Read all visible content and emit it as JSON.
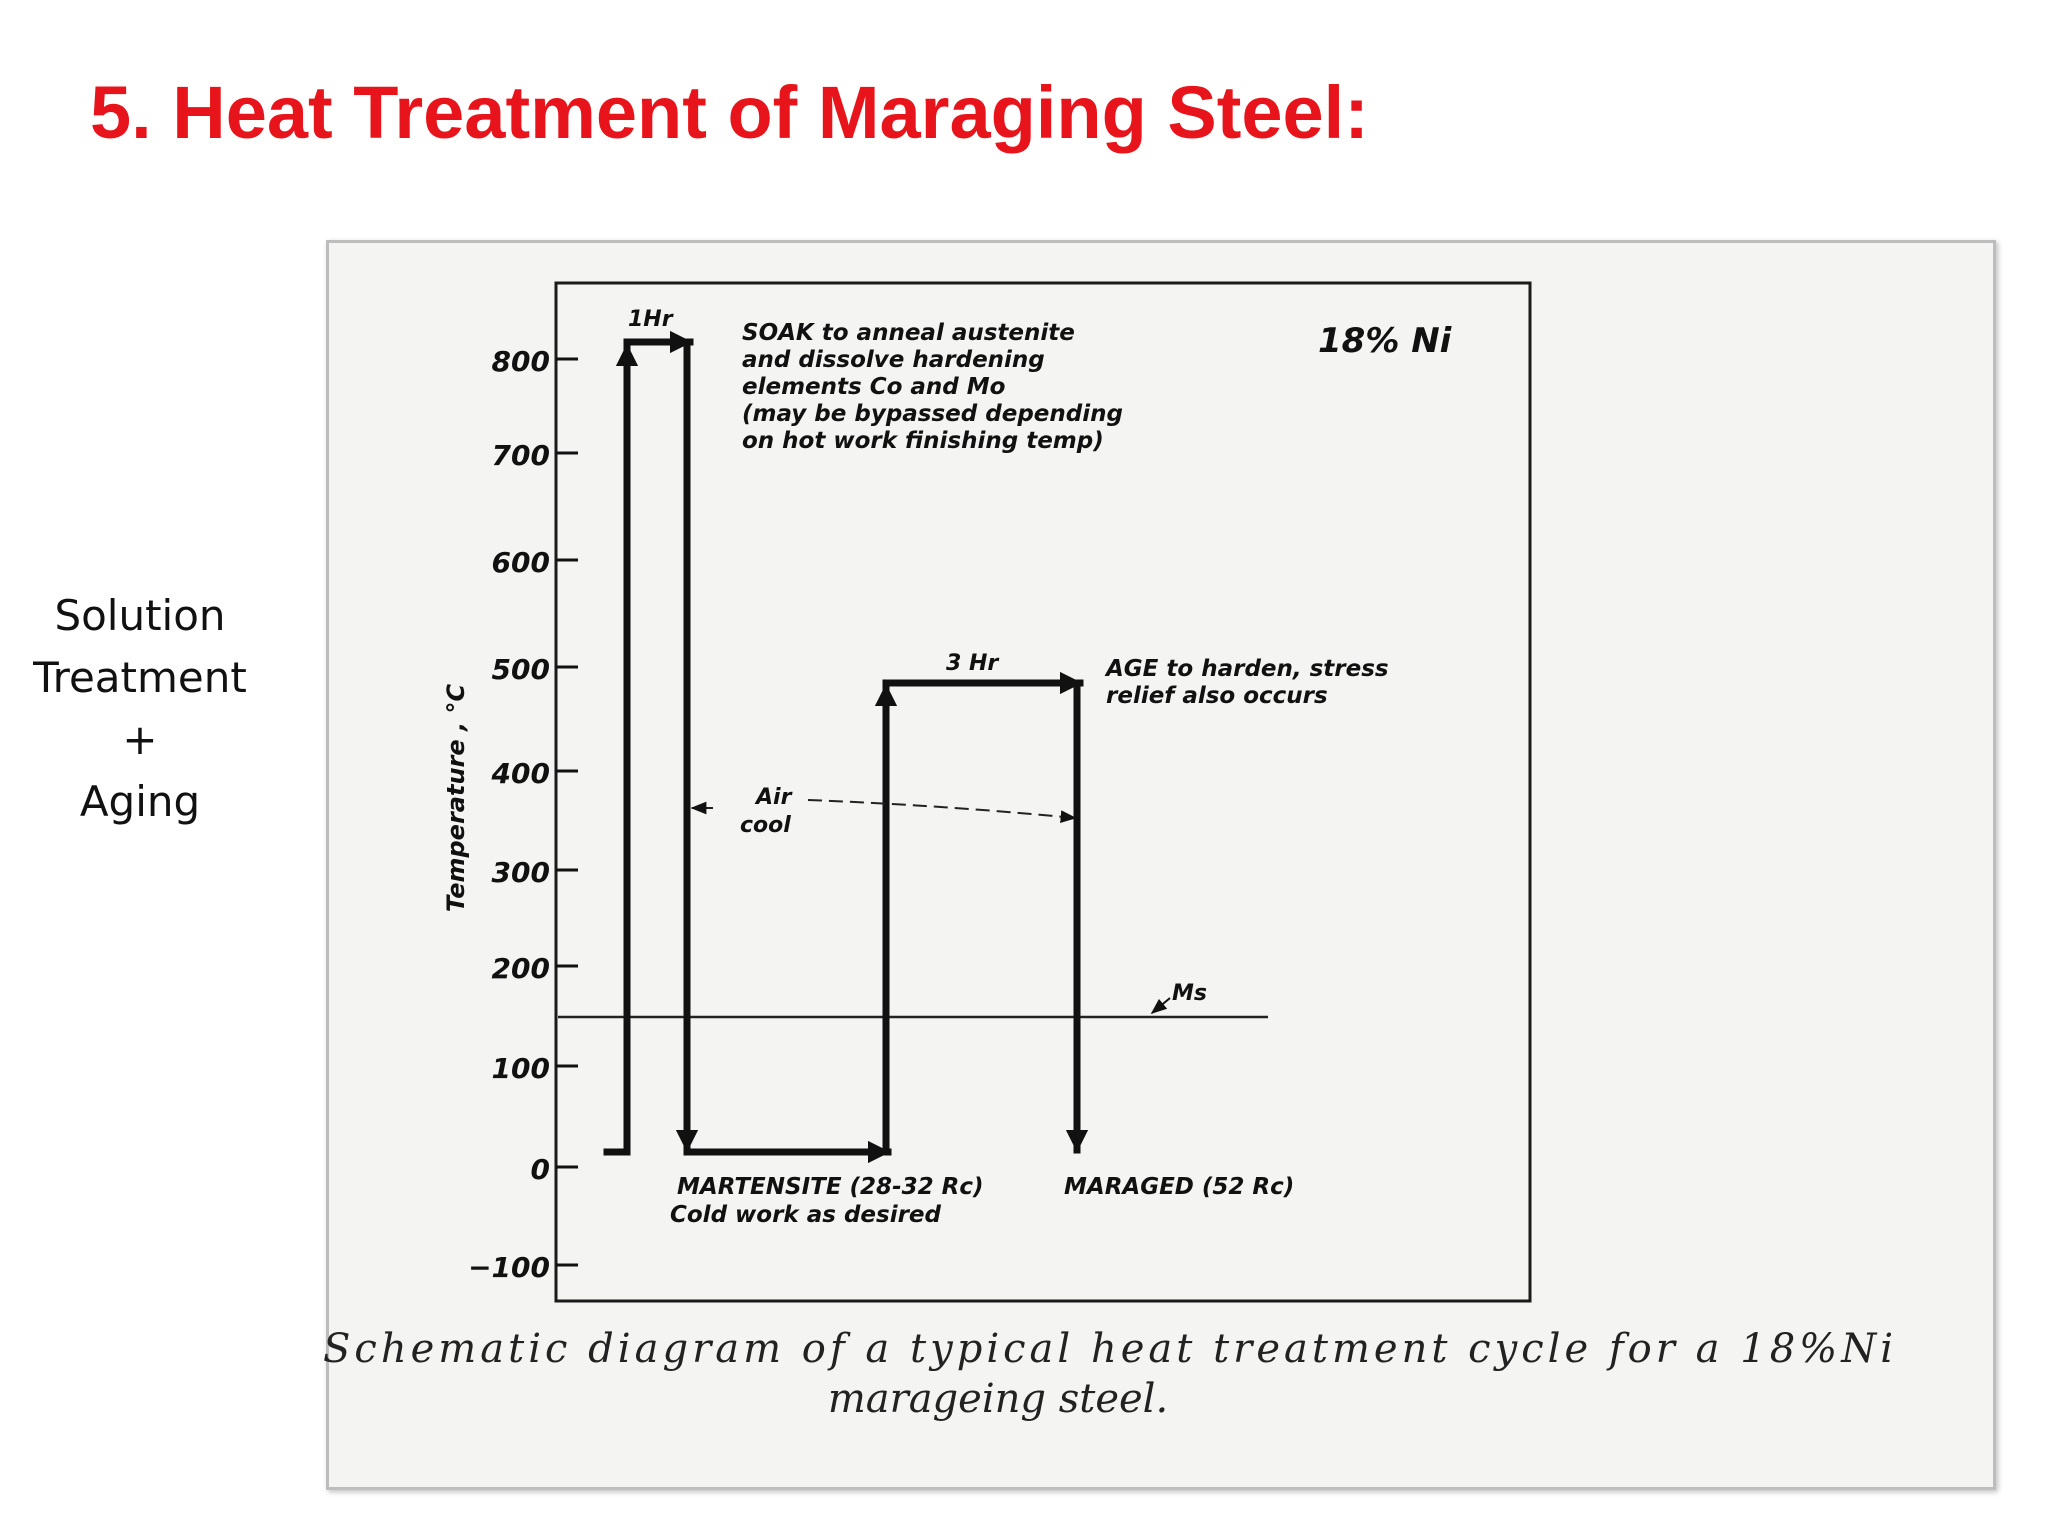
{
  "slide": {
    "title": "5. Heat Treatment of Maraging Steel:",
    "side_label_lines": [
      "Solution",
      "Treatment",
      "+",
      "Aging"
    ]
  },
  "diagram": {
    "corner_label": "18% Ni",
    "y_axis_label": "Temperature , °C",
    "y_ticks": [
      "800",
      "700",
      "600",
      "500",
      "400",
      "300",
      "200",
      "100",
      "0",
      "−100"
    ],
    "soak_duration": "1Hr",
    "soak_note_lines": [
      "SOAK to anneal austenite",
      "and dissolve hardening",
      "elements Co and Mo",
      "(may be bypassed depending",
      "on hot work finishing temp)"
    ],
    "age_duration": "3 Hr",
    "age_note_lines": [
      "AGE to harden, stress",
      "relief also occurs"
    ],
    "air_cool_lines": [
      "Air",
      "cool"
    ],
    "ms_label": "Ms",
    "martensite_lines": [
      "MARTENSITE (28-32 Rc)",
      "Cold work as desired"
    ],
    "maraged_label": "MARAGED (52 Rc)",
    "caption_lines": [
      "Schematic diagram of a typical heat treatment cycle for a 18%Ni",
      "marageing steel."
    ]
  }
}
